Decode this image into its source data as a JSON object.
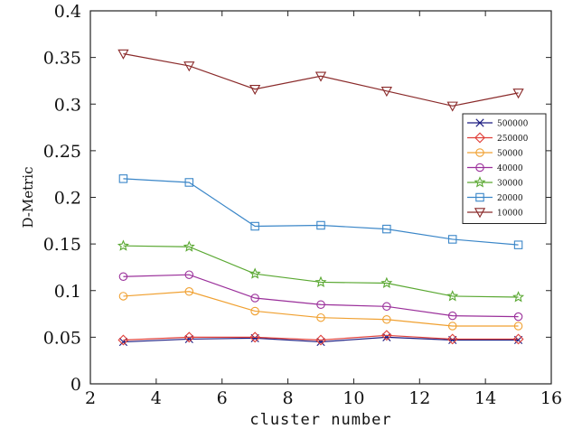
{
  "chart_data": {
    "type": "line",
    "xlabel": "cluster number",
    "ylabel": "D-Metric",
    "xlim": [
      2,
      16
    ],
    "ylim": [
      0,
      0.4
    ],
    "xticks": [
      2,
      4,
      6,
      8,
      10,
      12,
      14,
      16
    ],
    "yticks": [
      0,
      0.05,
      0.1,
      0.15,
      0.2,
      0.25,
      0.3,
      0.35,
      0.4
    ],
    "xtick_labels": [
      "2",
      "4",
      "6",
      "8",
      "10",
      "12",
      "14",
      "16"
    ],
    "ytick_labels": [
      "0",
      "0.05",
      "0.1",
      "0.15",
      "0.2",
      "0.25",
      "0.3",
      "0.35",
      "0.4"
    ],
    "grid": false,
    "legend_position": "right",
    "x": [
      3,
      5,
      7,
      9,
      11,
      13,
      15
    ],
    "series": [
      {
        "name": "500000",
        "color": "#1a1a80",
        "marker": "x",
        "values": [
          0.045,
          0.048,
          0.049,
          0.045,
          0.05,
          0.047,
          0.047
        ]
      },
      {
        "name": "250000",
        "color": "#e0403a",
        "marker": "diamond",
        "values": [
          0.047,
          0.05,
          0.05,
          0.047,
          0.052,
          0.048,
          0.048
        ]
      },
      {
        "name": "50000",
        "color": "#f0a030",
        "marker": "circle",
        "values": [
          0.094,
          0.099,
          0.078,
          0.071,
          0.069,
          0.062,
          0.062
        ]
      },
      {
        "name": "40000",
        "color": "#9a2f9a",
        "marker": "circle",
        "values": [
          0.115,
          0.117,
          0.092,
          0.085,
          0.083,
          0.073,
          0.072
        ]
      },
      {
        "name": "30000",
        "color": "#5aa832",
        "marker": "star",
        "values": [
          0.148,
          0.147,
          0.118,
          0.109,
          0.108,
          0.094,
          0.093
        ]
      },
      {
        "name": "20000",
        "color": "#3a86c8",
        "marker": "square",
        "values": [
          0.22,
          0.216,
          0.169,
          0.17,
          0.166,
          0.155,
          0.149
        ]
      },
      {
        "name": "10000",
        "color": "#8a2a2a",
        "marker": "triangle-down",
        "values": [
          0.354,
          0.341,
          0.316,
          0.33,
          0.314,
          0.298,
          0.312
        ]
      }
    ]
  }
}
